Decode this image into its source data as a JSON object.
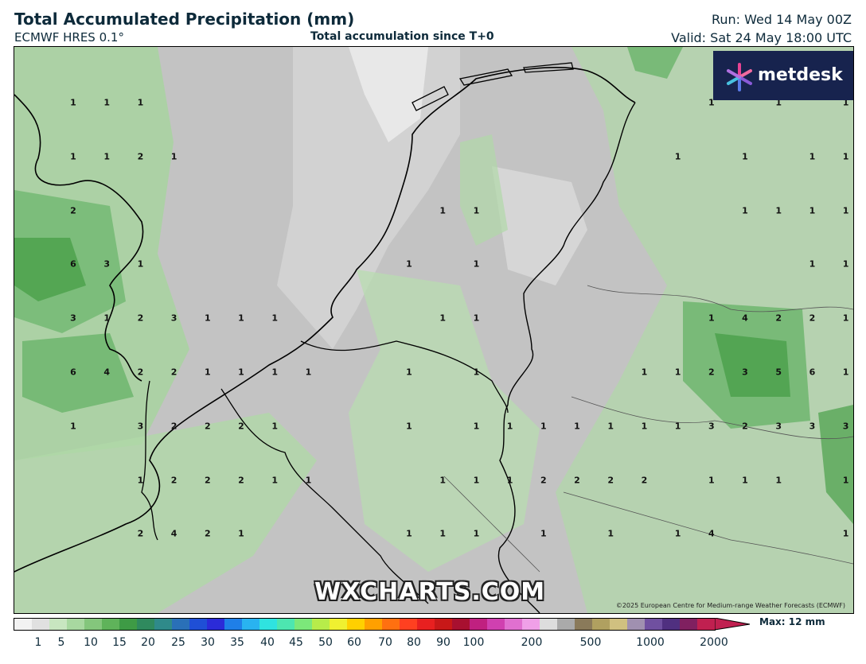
{
  "header": {
    "title": "Total Accumulated Precipitation (mm)",
    "model": "ECMWF HRES 0.1°",
    "subtitle": "Total accumulation since T+0",
    "run": "Run: Wed 14 May 00Z",
    "valid": "Valid: Sat 24 May 18:00 UTC"
  },
  "map": {
    "watermark": "WXCHARTS.COM",
    "copyright": "©2025 European Centre for Medium-range Weather Forecasts (ECMWF)",
    "logo_text": "metdesk",
    "grid_values": [
      [
        "1",
        "1",
        "1",
        "",
        "",
        "",
        "",
        "",
        "",
        "",
        "",
        "",
        "",
        "",
        "",
        "",
        "",
        "",
        "",
        "1",
        "",
        "1",
        "",
        "1"
      ],
      [
        "1",
        "1",
        "2",
        "1",
        "",
        "",
        "",
        "",
        "",
        "",
        "",
        "",
        "",
        "",
        "",
        "",
        "",
        "",
        "1",
        "",
        "1",
        "",
        "1",
        "1"
      ],
      [
        "2",
        "",
        "",
        "",
        "",
        "",
        "",
        "",
        "",
        "",
        "",
        "1",
        "1",
        "",
        "",
        "",
        "",
        "",
        "",
        "",
        "1",
        "1",
        "1",
        "1"
      ],
      [
        "6",
        "3",
        "1",
        "",
        "",
        "",
        "",
        "",
        "",
        "",
        "1",
        "",
        "1",
        "",
        "",
        "",
        "",
        "",
        "",
        "",
        "",
        "",
        "1",
        "1"
      ],
      [
        "3",
        "1",
        "2",
        "3",
        "1",
        "1",
        "1",
        "",
        "",
        "",
        "",
        "1",
        "1",
        "",
        "",
        "",
        "",
        "",
        "",
        "1",
        "4",
        "2",
        "2",
        "1"
      ],
      [
        "6",
        "4",
        "2",
        "2",
        "1",
        "1",
        "1",
        "1",
        "",
        "",
        "1",
        "",
        "1",
        "",
        "",
        "",
        "",
        "1",
        "1",
        "2",
        "3",
        "5",
        "6",
        "1"
      ],
      [
        "1",
        "",
        "3",
        "2",
        "2",
        "2",
        "1",
        "",
        "",
        "",
        "1",
        "",
        "1",
        "1",
        "1",
        "1",
        "1",
        "1",
        "1",
        "3",
        "2",
        "3",
        "3",
        "3"
      ],
      [
        "",
        "",
        "1",
        "2",
        "2",
        "2",
        "1",
        "1",
        "",
        "",
        "",
        "1",
        "1",
        "1",
        "2",
        "2",
        "2",
        "2",
        "",
        "1",
        "1",
        "1",
        "",
        "1"
      ],
      [
        "",
        "",
        "2",
        "4",
        "2",
        "1",
        "",
        "",
        "",
        "",
        "1",
        "1",
        "1",
        "",
        "1",
        "",
        "1",
        "",
        "1",
        "4",
        "",
        "",
        "",
        "1"
      ]
    ]
  },
  "colorbar": {
    "ticks": [
      "1",
      "5",
      "10",
      "15",
      "20",
      "25",
      "30",
      "35",
      "40",
      "45",
      "50",
      "60",
      "70",
      "80",
      "90",
      "100",
      "200",
      "500",
      "1000",
      "2000"
    ],
    "max_label": "Max: 12 mm",
    "colors": [
      "#f2f2f2",
      "#e0e0e0",
      "#c8e6c0",
      "#a8d8a0",
      "#84c67c",
      "#5fb35a",
      "#3e9b45",
      "#2f8a5e",
      "#2f8a8a",
      "#2a70b8",
      "#1f4fd6",
      "#2b2bd8",
      "#1f7fe8",
      "#29b3f0",
      "#2fe3e0",
      "#4de6b0",
      "#7ce87a",
      "#b7ec4a",
      "#f0f030",
      "#ffd000",
      "#ffa000",
      "#ff7010",
      "#ff4020",
      "#e82020",
      "#c81818",
      "#a81030",
      "#c02080",
      "#d040b0",
      "#e070d0",
      "#f0a0e8",
      "#dddddd",
      "#aaaaaa",
      "#8a7a5a",
      "#b0a060",
      "#d0c080",
      "#a090b0",
      "#7050a0",
      "#503080",
      "#802060",
      "#c02050"
    ],
    "units": "mm"
  }
}
